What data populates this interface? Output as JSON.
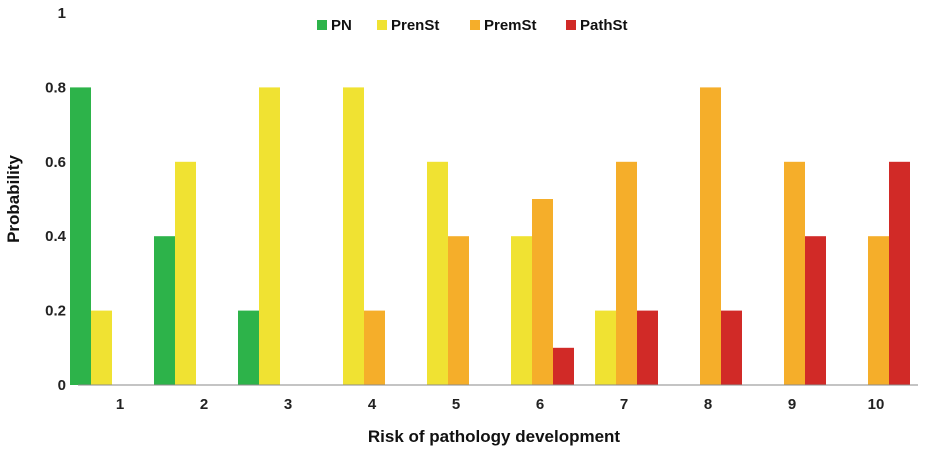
{
  "chart_data": {
    "type": "bar",
    "categories": [
      "1",
      "2",
      "3",
      "4",
      "5",
      "6",
      "7",
      "8",
      "9",
      "10"
    ],
    "series": [
      {
        "name": "PN",
        "color": "#2db34a",
        "values": [
          0.8,
          0.4,
          0.2,
          0,
          0,
          0,
          0,
          0,
          0,
          0
        ]
      },
      {
        "name": "PrenSt",
        "color": "#f0e232",
        "values": [
          0.2,
          0.6,
          0.8,
          0.8,
          0.6,
          0.4,
          0.2,
          0,
          0,
          0
        ]
      },
      {
        "name": "PremSt",
        "color": "#f5ae2a",
        "values": [
          0,
          0,
          0,
          0.2,
          0.4,
          0.5,
          0.6,
          0.8,
          0.6,
          0.4
        ]
      },
      {
        "name": "PathSt",
        "color": "#d12a27",
        "values": [
          0,
          0,
          0,
          0,
          0,
          0.1,
          0.2,
          0.2,
          0.4,
          0.6
        ]
      }
    ],
    "xlabel": "Risk of pathology development",
    "ylabel": "Probability",
    "ylim": [
      0,
      1
    ],
    "yticks": [
      "0",
      "0.2",
      "0.4",
      "0.6",
      "0.8",
      "1"
    ],
    "grid": false,
    "legend_position": "top-center"
  }
}
